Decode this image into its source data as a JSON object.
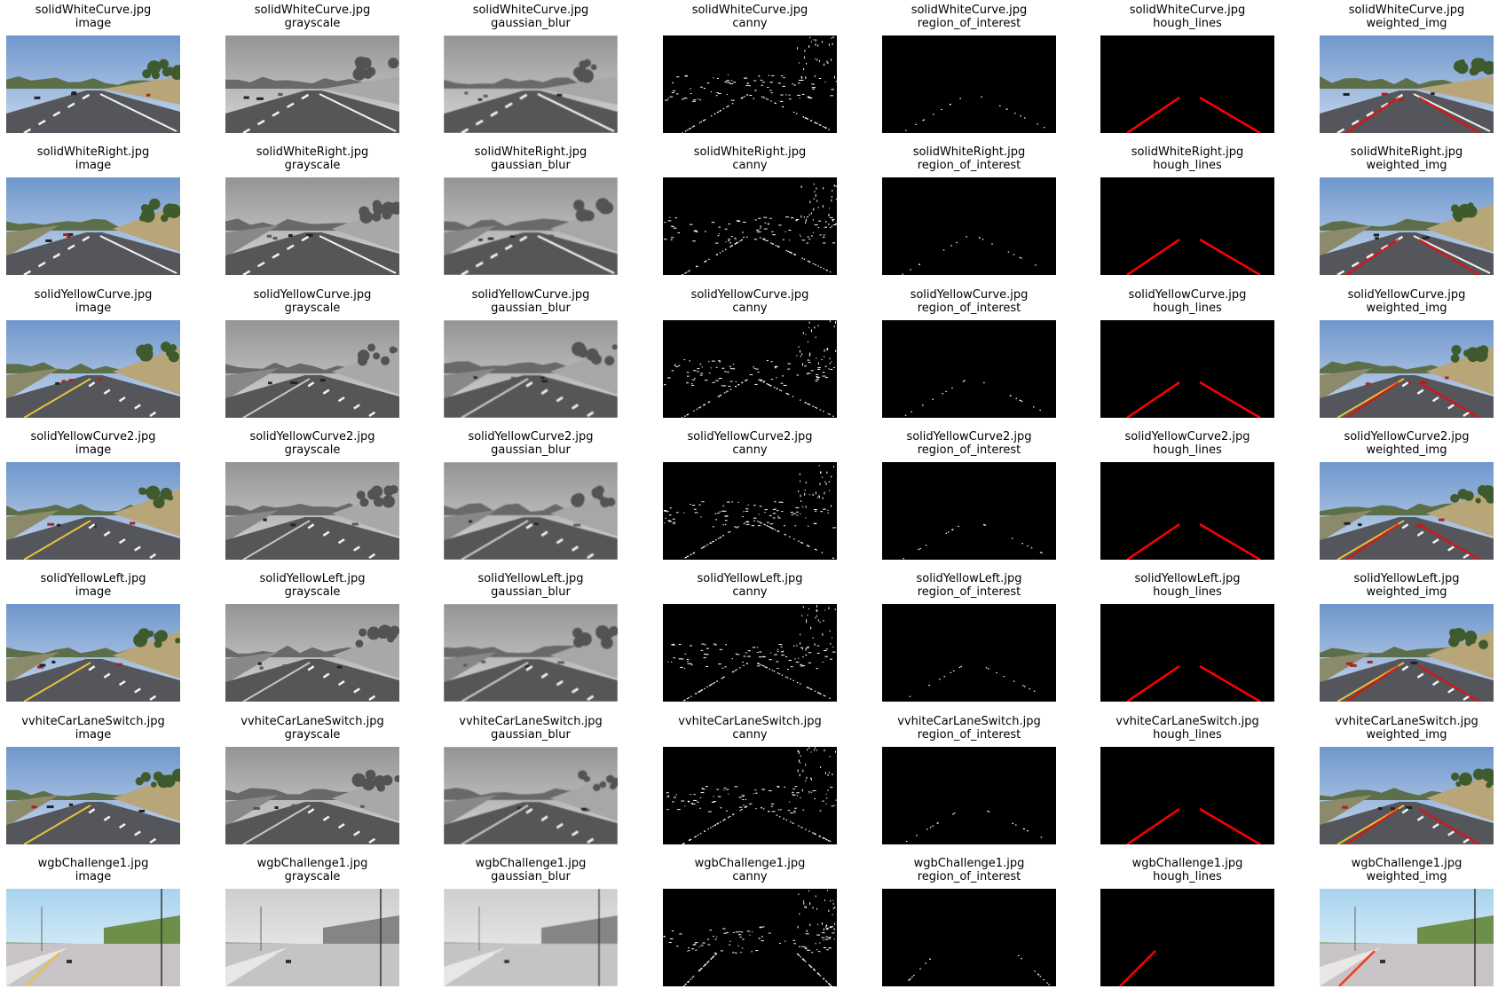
{
  "rows": [
    {
      "file": "solidWhiteCurve.jpg",
      "scene": "white-curve"
    },
    {
      "file": "solidWhiteRight.jpg",
      "scene": "white-right"
    },
    {
      "file": "solidYellowCurve.jpg",
      "scene": "yellow-curve"
    },
    {
      "file": "solidYellowCurve2.jpg",
      "scene": "yellow-curve2"
    },
    {
      "file": "solidYellowLeft.jpg",
      "scene": "yellow-left"
    },
    {
      "file": "vvhiteCarLaneSwitch.jpg",
      "scene": "white-car-lane-switch"
    },
    {
      "file": "wgbChallenge1.jpg",
      "scene": "challenge"
    }
  ],
  "stages": [
    "image",
    "grayscale",
    "gaussian_blur",
    "canny",
    "region_of_interest",
    "hough_lines",
    "weighted_img"
  ],
  "colors": {
    "sky_top": "#6f97cc",
    "sky_bottom": "#c9d9ee",
    "hills": "#5d6f4a",
    "dry_grass": "#b9a678",
    "road": "#55565b",
    "white_lane": "#f2f2f2",
    "yellow_lane": "#e7c23a",
    "hough_red": "#ff0000",
    "edge_white": "#ffffff",
    "black": "#000000",
    "challenge_sky": "#a8d4ef",
    "challenge_trees": "#6d8f4a"
  }
}
